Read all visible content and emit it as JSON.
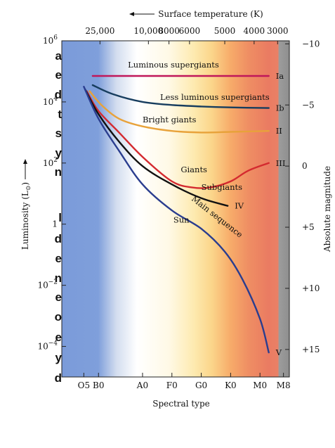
{
  "page": {
    "left_margin_fragments": [
      "a",
      "e",
      "d",
      "t",
      "s",
      "y",
      "n",
      "l",
      "d",
      "e",
      "n",
      "e",
      "o",
      "e",
      "y",
      "d"
    ]
  },
  "chart_data": {
    "type": "line",
    "x_axis": {
      "label": "Spectral type",
      "ticks": [
        {
          "label": "O5",
          "x": 0.0
        },
        {
          "label": "B0",
          "x": 0.5
        },
        {
          "label": "A0",
          "x": 2.0
        },
        {
          "label": "F0",
          "x": 3.0
        },
        {
          "label": "G0",
          "x": 4.0
        },
        {
          "label": "K0",
          "x": 5.0
        },
        {
          "label": "M0",
          "x": 6.0
        },
        {
          "label": "M8",
          "x": 6.8
        }
      ],
      "xlim": [
        -0.75,
        7.0
      ]
    },
    "top_axis": {
      "label": "Surface temperature (K)",
      "ticks": [
        {
          "label": "25,000",
          "x": 0.55
        },
        {
          "label": "10,000",
          "x": 2.2
        },
        {
          "label": "8000",
          "x": 2.9
        },
        {
          "label": "6000",
          "x": 3.6
        },
        {
          "label": "5000",
          "x": 4.8
        },
        {
          "label": "4000",
          "x": 5.8
        },
        {
          "label": "3000",
          "x": 6.6
        }
      ]
    },
    "y_axis": {
      "label": "Luminosity (L",
      "label_sub": "⊙",
      "scale": "log",
      "ylim_log10": [
        -5,
        6
      ],
      "ticks": [
        {
          "base": "10",
          "exp": "6",
          "log": 6
        },
        {
          "base": "10",
          "exp": "4",
          "log": 4
        },
        {
          "base": "10",
          "exp": "2",
          "log": 2
        },
        {
          "base": "1",
          "exp": "",
          "log": 0
        },
        {
          "base": "10",
          "exp": "−2",
          "log": -2
        },
        {
          "base": "10",
          "exp": "−4",
          "log": -4
        }
      ]
    },
    "right_axis": {
      "label": "Absolute magnitude",
      "ticks": [
        {
          "label": "−10",
          "log": 5.9
        },
        {
          "label": "−5",
          "log": 3.9
        },
        {
          "label": "0",
          "log": 1.9
        },
        {
          "label": "+5",
          "log": -0.1
        },
        {
          "label": "+10",
          "log": -2.1
        },
        {
          "label": "+15",
          "log": -4.1
        }
      ]
    },
    "series": [
      {
        "name": "Luminous supergiants",
        "class": "Ia",
        "color": "#c0175a",
        "points": [
          [
            0.3,
            4.85
          ],
          [
            2,
            4.85
          ],
          [
            4,
            4.85
          ],
          [
            5.5,
            4.85
          ],
          [
            6.3,
            4.85
          ]
        ]
      },
      {
        "name": "Less luminous supergiants",
        "class": "Ib",
        "color": "#173d5e",
        "points": [
          [
            0.3,
            4.55
          ],
          [
            1,
            4.25
          ],
          [
            2,
            4.0
          ],
          [
            3,
            3.9
          ],
          [
            4,
            3.85
          ],
          [
            5,
            3.82
          ],
          [
            6.3,
            3.8
          ]
        ]
      },
      {
        "name": "Bright giants",
        "class": "II",
        "color": "#e8a23a",
        "points": [
          [
            0.2,
            4.35
          ],
          [
            0.6,
            3.9
          ],
          [
            1.2,
            3.45
          ],
          [
            2,
            3.2
          ],
          [
            3,
            3.05
          ],
          [
            4,
            3.0
          ],
          [
            5,
            3.02
          ],
          [
            6.3,
            3.05
          ]
        ]
      },
      {
        "name": "Giants",
        "class": "III",
        "color": "#d42a2f",
        "points": [
          [
            0.1,
            4.35
          ],
          [
            0.5,
            3.7
          ],
          [
            1.2,
            3.0
          ],
          [
            2,
            2.2
          ],
          [
            3,
            1.4
          ],
          [
            3.7,
            1.2
          ],
          [
            4.3,
            1.2
          ],
          [
            5,
            1.4
          ],
          [
            5.6,
            1.75
          ],
          [
            6.3,
            2.0
          ]
        ]
      },
      {
        "name": "Subgiants",
        "class": "IV",
        "color": "#111111",
        "points": [
          [
            0.05,
            4.4
          ],
          [
            0.5,
            3.6
          ],
          [
            1.2,
            2.7
          ],
          [
            2,
            1.9
          ],
          [
            3,
            1.3
          ],
          [
            4,
            0.85
          ],
          [
            4.9,
            0.6
          ]
        ]
      },
      {
        "name": "Main sequence",
        "class": "V",
        "color": "#2a3d8f",
        "points": [
          [
            0,
            4.5
          ],
          [
            0.5,
            3.45
          ],
          [
            1.2,
            2.4
          ],
          [
            2,
            1.3
          ],
          [
            3,
            0.45
          ],
          [
            4,
            -0.15
          ],
          [
            4.8,
            -0.9
          ],
          [
            5.4,
            -1.8
          ],
          [
            6.0,
            -3.1
          ],
          [
            6.3,
            -4.2
          ]
        ]
      }
    ],
    "annotations": [
      {
        "text": "Luminous supergiants",
        "x": 1.5,
        "log": 5.12
      },
      {
        "text": "Less luminous supergiants",
        "x": 2.6,
        "log": 4.07
      },
      {
        "text": "Bright giants",
        "x": 2.0,
        "log": 3.33
      },
      {
        "text": "Giants",
        "x": 3.3,
        "log": 1.7
      },
      {
        "text": "Subgiants",
        "x": 4.0,
        "log": 1.12
      },
      {
        "text": "Main sequence",
        "x": 3.65,
        "log": 0.8,
        "rotate": 38
      },
      {
        "text": "Sun",
        "x": 3.05,
        "log": 0.05
      }
    ],
    "grid": false,
    "legend": "none"
  }
}
